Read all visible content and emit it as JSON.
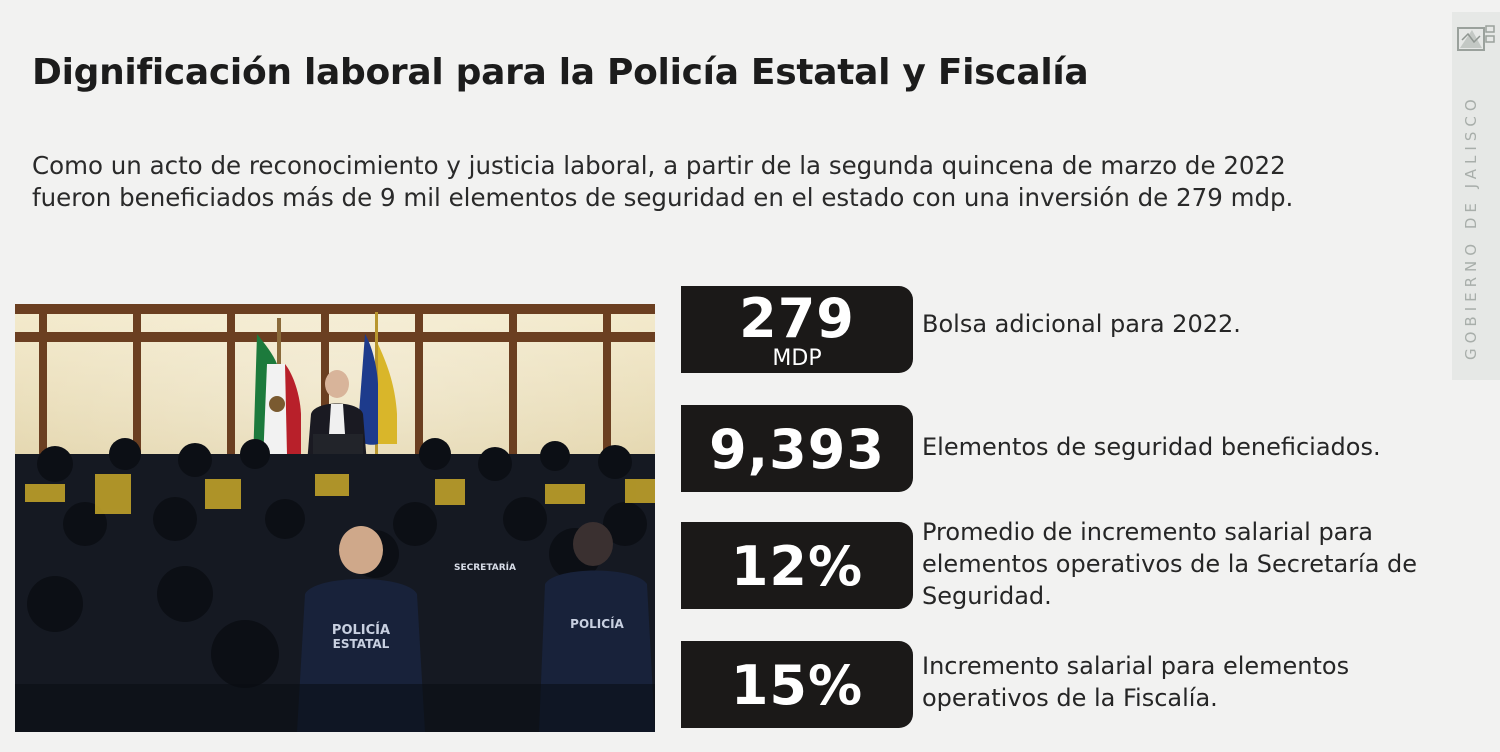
{
  "title": "Dignificación laboral para la Policía Estatal y Fiscalía",
  "intro": {
    "line1": "Como un acto de reconocimiento y justicia laboral, a partir de la segunda quincena de marzo de 2022",
    "line2": "fueron beneficiados más de 9 mil elementos de seguridad en el estado con una inversión de 279 mdp."
  },
  "brand": {
    "text": "GOBIERNO DE JALISCO",
    "icon": "jalisco-logo-icon"
  },
  "photo": {
    "uniform_labels": [
      "POLICÍA",
      "ESTATAL",
      "POLICÍA",
      "SECRETARÍA"
    ]
  },
  "stats": [
    {
      "value": "279",
      "unit": "MDP",
      "description_lines": [
        "Bolsa adicional para 2022."
      ]
    },
    {
      "value": "9,393",
      "unit": "",
      "description_lines": [
        "Elementos de seguridad beneficiados."
      ]
    },
    {
      "value": "12%",
      "unit": "",
      "description_lines": [
        "Promedio de incremento salarial para",
        "elementos operativos de la Secretaría de",
        "Seguridad."
      ]
    },
    {
      "value": "15%",
      "unit": "",
      "description_lines": [
        "Incremento salarial para elementos",
        "operativos de la Fiscalía."
      ]
    }
  ],
  "colors": {
    "background": "#f2f2f1",
    "stat_box": "#1b1918",
    "text": "#1c1c1c",
    "brand_tab": "#e6e8e6"
  }
}
